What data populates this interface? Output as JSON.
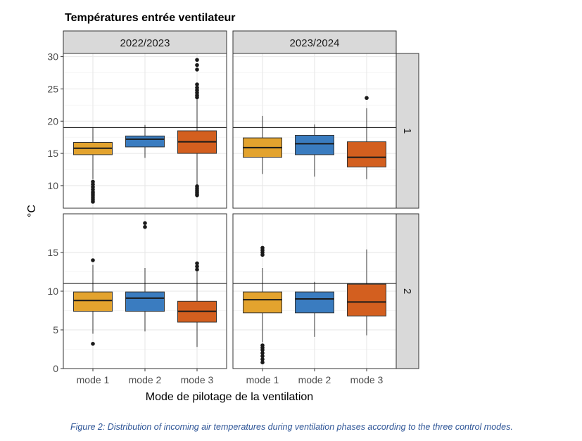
{
  "caption": "Figure 2: Distribution of incoming air temperatures during ventilation phases according to the three control modes.",
  "colors": {
    "mode 1": "#E3A32E",
    "mode 2": "#3A7CC0",
    "mode 3": "#D35F1F",
    "strip_bg": "#D9D9D9",
    "reference_line": "#000000"
  },
  "chart_data": {
    "type": "box",
    "title": "Températures entrée ventilateur",
    "xlabel": "Mode de pilotage de la ventilation",
    "ylabel": "°C",
    "categories": [
      "mode 1",
      "mode 2",
      "mode 3"
    ],
    "column_facets": [
      "2022/2023",
      "2023/2024"
    ],
    "row_facets": [
      "1",
      "2"
    ],
    "row_scales": [
      {
        "row": "1",
        "ylim": [
          6.5,
          30.5
        ],
        "ticks": [
          10,
          15,
          20,
          25,
          30
        ],
        "reference_line": 19
      },
      {
        "row": "2",
        "ylim": [
          0,
          20
        ],
        "ticks": [
          0,
          5,
          10,
          15
        ],
        "reference_line": 11
      }
    ],
    "grid": true,
    "legend": "none",
    "panels": [
      {
        "row": "1",
        "column": "2022/2023",
        "boxes": [
          {
            "category": "mode 1",
            "whisker_low": 11,
            "q1": 14.8,
            "median": 15.8,
            "q3": 16.7,
            "whisker_high": 19,
            "outliers": [
              10.6,
              10.2,
              9.8,
              9.4,
              9.0,
              8.7,
              8.4,
              8.1,
              7.8,
              7.5
            ]
          },
          {
            "category": "mode 2",
            "whisker_low": 14.3,
            "q1": 16.0,
            "median": 17.2,
            "q3": 17.7,
            "whisker_high": 19.4,
            "outliers": []
          },
          {
            "category": "mode 3",
            "whisker_low": 10,
            "q1": 15.0,
            "median": 16.8,
            "q3": 18.5,
            "whisker_high": 23.5,
            "outliers": [
              29.5,
              28.7,
              28.0,
              25.7,
              25.2,
              24.8,
              24.4,
              24.0,
              23.7,
              9.9,
              9.6,
              9.3,
              9.0,
              8.7,
              8.5
            ]
          }
        ]
      },
      {
        "row": "1",
        "column": "2023/2024",
        "boxes": [
          {
            "category": "mode 1",
            "whisker_low": 11.8,
            "q1": 14.4,
            "median": 15.9,
            "q3": 17.4,
            "whisker_high": 20.8,
            "outliers": []
          },
          {
            "category": "mode 2",
            "whisker_low": 11.4,
            "q1": 14.8,
            "median": 16.5,
            "q3": 17.8,
            "whisker_high": 19.5,
            "outliers": []
          },
          {
            "category": "mode 3",
            "whisker_low": 11.0,
            "q1": 12.9,
            "median": 14.4,
            "q3": 16.8,
            "whisker_high": 22.0,
            "outliers": [
              23.6
            ]
          }
        ]
      },
      {
        "row": "2",
        "column": "2022/2023",
        "boxes": [
          {
            "category": "mode 1",
            "whisker_low": 4.5,
            "q1": 7.4,
            "median": 8.8,
            "q3": 9.9,
            "whisker_high": 13.4,
            "outliers": [
              14.0,
              3.2
            ]
          },
          {
            "category": "mode 2",
            "whisker_low": 4.8,
            "q1": 7.4,
            "median": 9.1,
            "q3": 9.9,
            "whisker_high": 13.0,
            "outliers": [
              18.8,
              18.3
            ]
          },
          {
            "category": "mode 3",
            "whisker_low": 2.8,
            "q1": 6.0,
            "median": 7.4,
            "q3": 8.7,
            "whisker_high": 12.5,
            "outliers": [
              13.6,
              13.2,
              12.8
            ]
          }
        ]
      },
      {
        "row": "2",
        "column": "2023/2024",
        "boxes": [
          {
            "category": "mode 1",
            "whisker_low": 3.4,
            "q1": 7.2,
            "median": 8.9,
            "q3": 9.9,
            "whisker_high": 13.0,
            "outliers": [
              15.6,
              15.3,
              15.0,
              14.7,
              3.0,
              2.7,
              2.4,
              2.0,
              1.6,
              1.2,
              0.8
            ]
          },
          {
            "category": "mode 2",
            "whisker_low": 4.1,
            "q1": 7.2,
            "median": 9.0,
            "q3": 9.9,
            "whisker_high": 11.2,
            "outliers": []
          },
          {
            "category": "mode 3",
            "whisker_low": 4.3,
            "q1": 6.8,
            "median": 8.6,
            "q3": 10.9,
            "whisker_high": 15.4,
            "outliers": []
          }
        ]
      }
    ]
  }
}
